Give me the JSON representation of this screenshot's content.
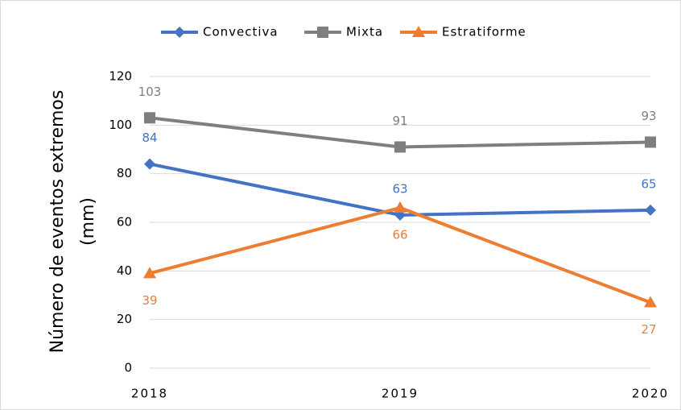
{
  "chart_data": {
    "type": "line",
    "ylabel": [
      "Número de eventos extremos",
      "(mm)"
    ],
    "categories": [
      "2018",
      "2019",
      "2020"
    ],
    "series": [
      {
        "name": "Convectiva",
        "color": "#4472c4",
        "marker": "diamond",
        "label_position": "above",
        "values": [
          84,
          63,
          65
        ]
      },
      {
        "name": "Mixta",
        "color": "#7f7f7f",
        "marker": "square",
        "label_position": "above",
        "values": [
          103,
          91,
          93
        ]
      },
      {
        "name": "Estratiforme",
        "color": "#ed7d31",
        "marker": "triangle",
        "label_position": "below",
        "values": [
          39,
          66,
          27
        ]
      }
    ],
    "ylim": [
      0,
      120
    ],
    "yticks": [
      0,
      20,
      40,
      60,
      80,
      100,
      120
    ],
    "grid": true,
    "legend": "top"
  }
}
